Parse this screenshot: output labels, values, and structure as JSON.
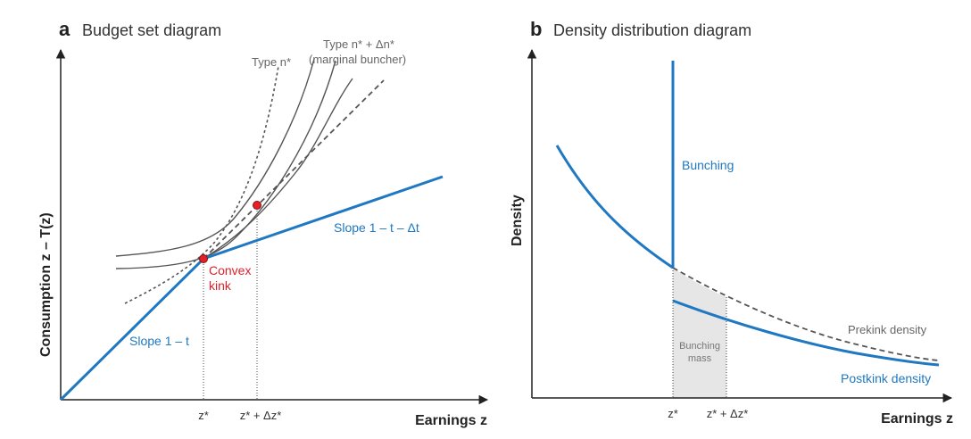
{
  "panel_a": {
    "letter": "a",
    "title": "Budget set diagram",
    "y_axis_label": "Consumption z – T(z)",
    "x_axis_label": "Earnings z",
    "type_n_label": "Type n*",
    "type_n_delta_label_line1": "Type n* + Δn*",
    "type_n_delta_label_line2": "(marginal buncher)",
    "convex_kink_line1": "Convex",
    "convex_kink_line2": "kink",
    "slope_upper_label": "Slope 1 – t – Δt",
    "slope_lower_label": "Slope 1 – t",
    "tick_z": "z*",
    "tick_z_delta": "z* + Δz*"
  },
  "panel_b": {
    "letter": "b",
    "title": "Density distribution diagram",
    "y_axis_label": "Density",
    "x_axis_label": "Earnings z",
    "bunching_label": "Bunching",
    "bunching_mass_line1": "Bunching",
    "bunching_mass_line2": "mass",
    "prekink_label": "Prekink density",
    "postkink_label": "Postkink density",
    "tick_z": "z*",
    "tick_z_delta": "z* + Δz*"
  },
  "colors": {
    "blue": "#1f78c1",
    "red": "#e0202a",
    "gray_curve": "#555555",
    "shade": "#e6e6e6"
  }
}
